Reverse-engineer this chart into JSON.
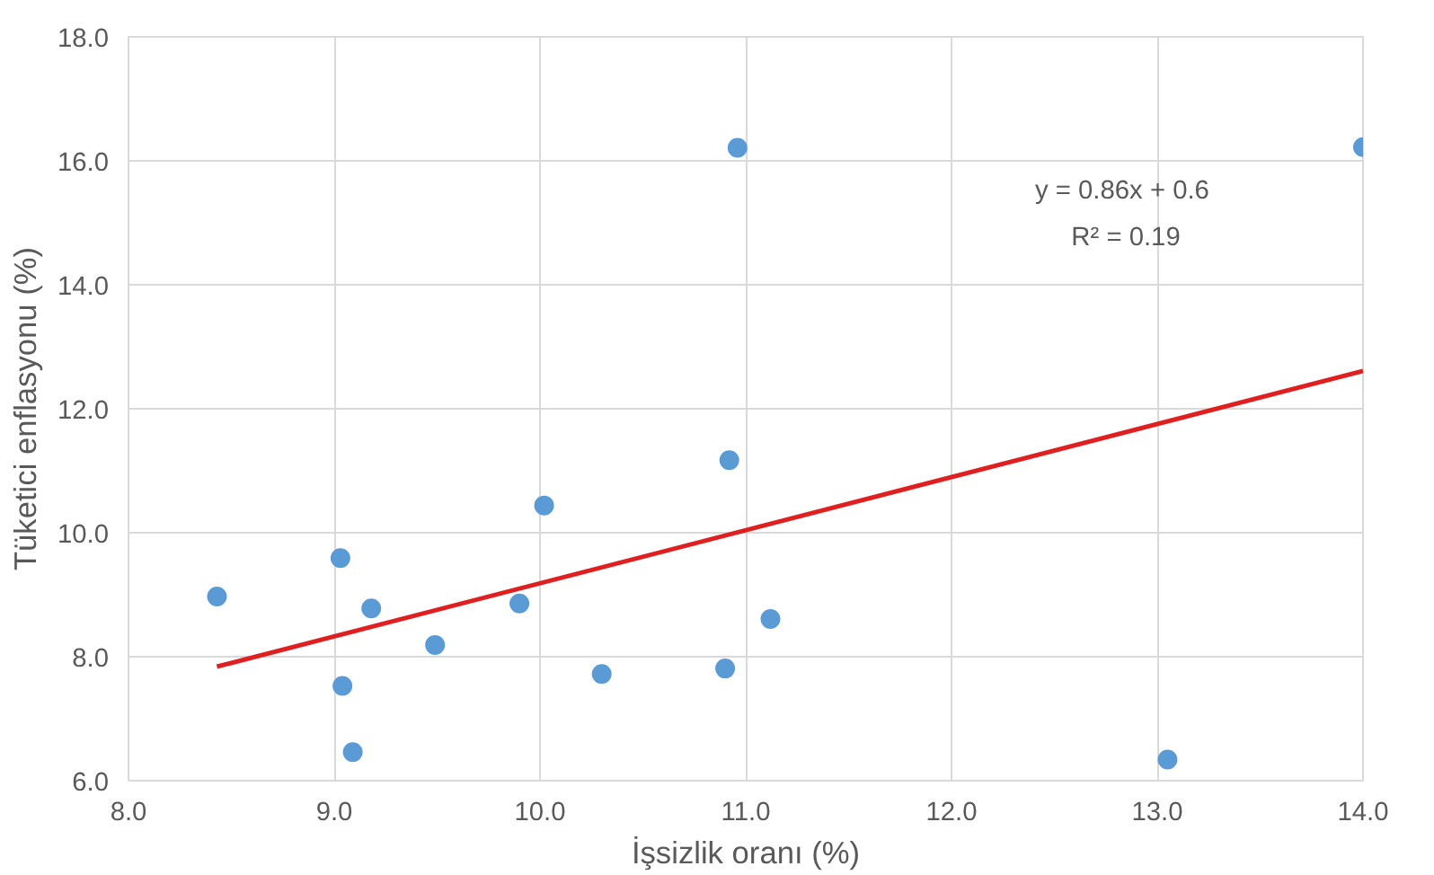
{
  "chart_data": {
    "type": "scatter",
    "xlabel": "İşsizlik oranı (%)",
    "ylabel": "Tüketici enflasyonu (%)",
    "xlim": [
      8.0,
      14.0
    ],
    "ylim": [
      6.0,
      18.0
    ],
    "xticks": [
      {
        "value": 8,
        "label": "8.0"
      },
      {
        "value": 9,
        "label": "9.0"
      },
      {
        "value": 10,
        "label": "10.0"
      },
      {
        "value": 11,
        "label": "11.0"
      },
      {
        "value": 12,
        "label": "12.0"
      },
      {
        "value": 13,
        "label": "13.0"
      },
      {
        "value": 14,
        "label": "14.0"
      }
    ],
    "yticks": [
      {
        "value": 6,
        "label": "6.0"
      },
      {
        "value": 8,
        "label": "8.0"
      },
      {
        "value": 10,
        "label": "10.0"
      },
      {
        "value": 12,
        "label": "12.0"
      },
      {
        "value": 14,
        "label": "14.0"
      },
      {
        "value": 16,
        "label": "16.0"
      },
      {
        "value": 18,
        "label": "18.0"
      }
    ],
    "grid": true,
    "series": [
      {
        "marker": "circle",
        "color": "#5b9bd5",
        "x": [
          8.43,
          9.03,
          9.18,
          9.04,
          9.09,
          9.49,
          9.9,
          10.02,
          10.3,
          10.9,
          10.92,
          10.96,
          11.12,
          13.05,
          14.0
        ],
        "values": [
          8.97,
          9.59,
          8.78,
          7.53,
          6.46,
          8.19,
          8.86,
          10.44,
          7.72,
          7.81,
          11.17,
          16.21,
          8.61,
          6.34,
          16.22
        ]
      },
      {
        "type": "line",
        "marker": "none",
        "color": "#e02020",
        "x": [
          8.43,
          14.0
        ],
        "values": [
          7.84,
          12.61
        ]
      }
    ],
    "annotations": [
      "y = 0.86x  + 0.6",
      "R² = 0.19"
    ]
  }
}
